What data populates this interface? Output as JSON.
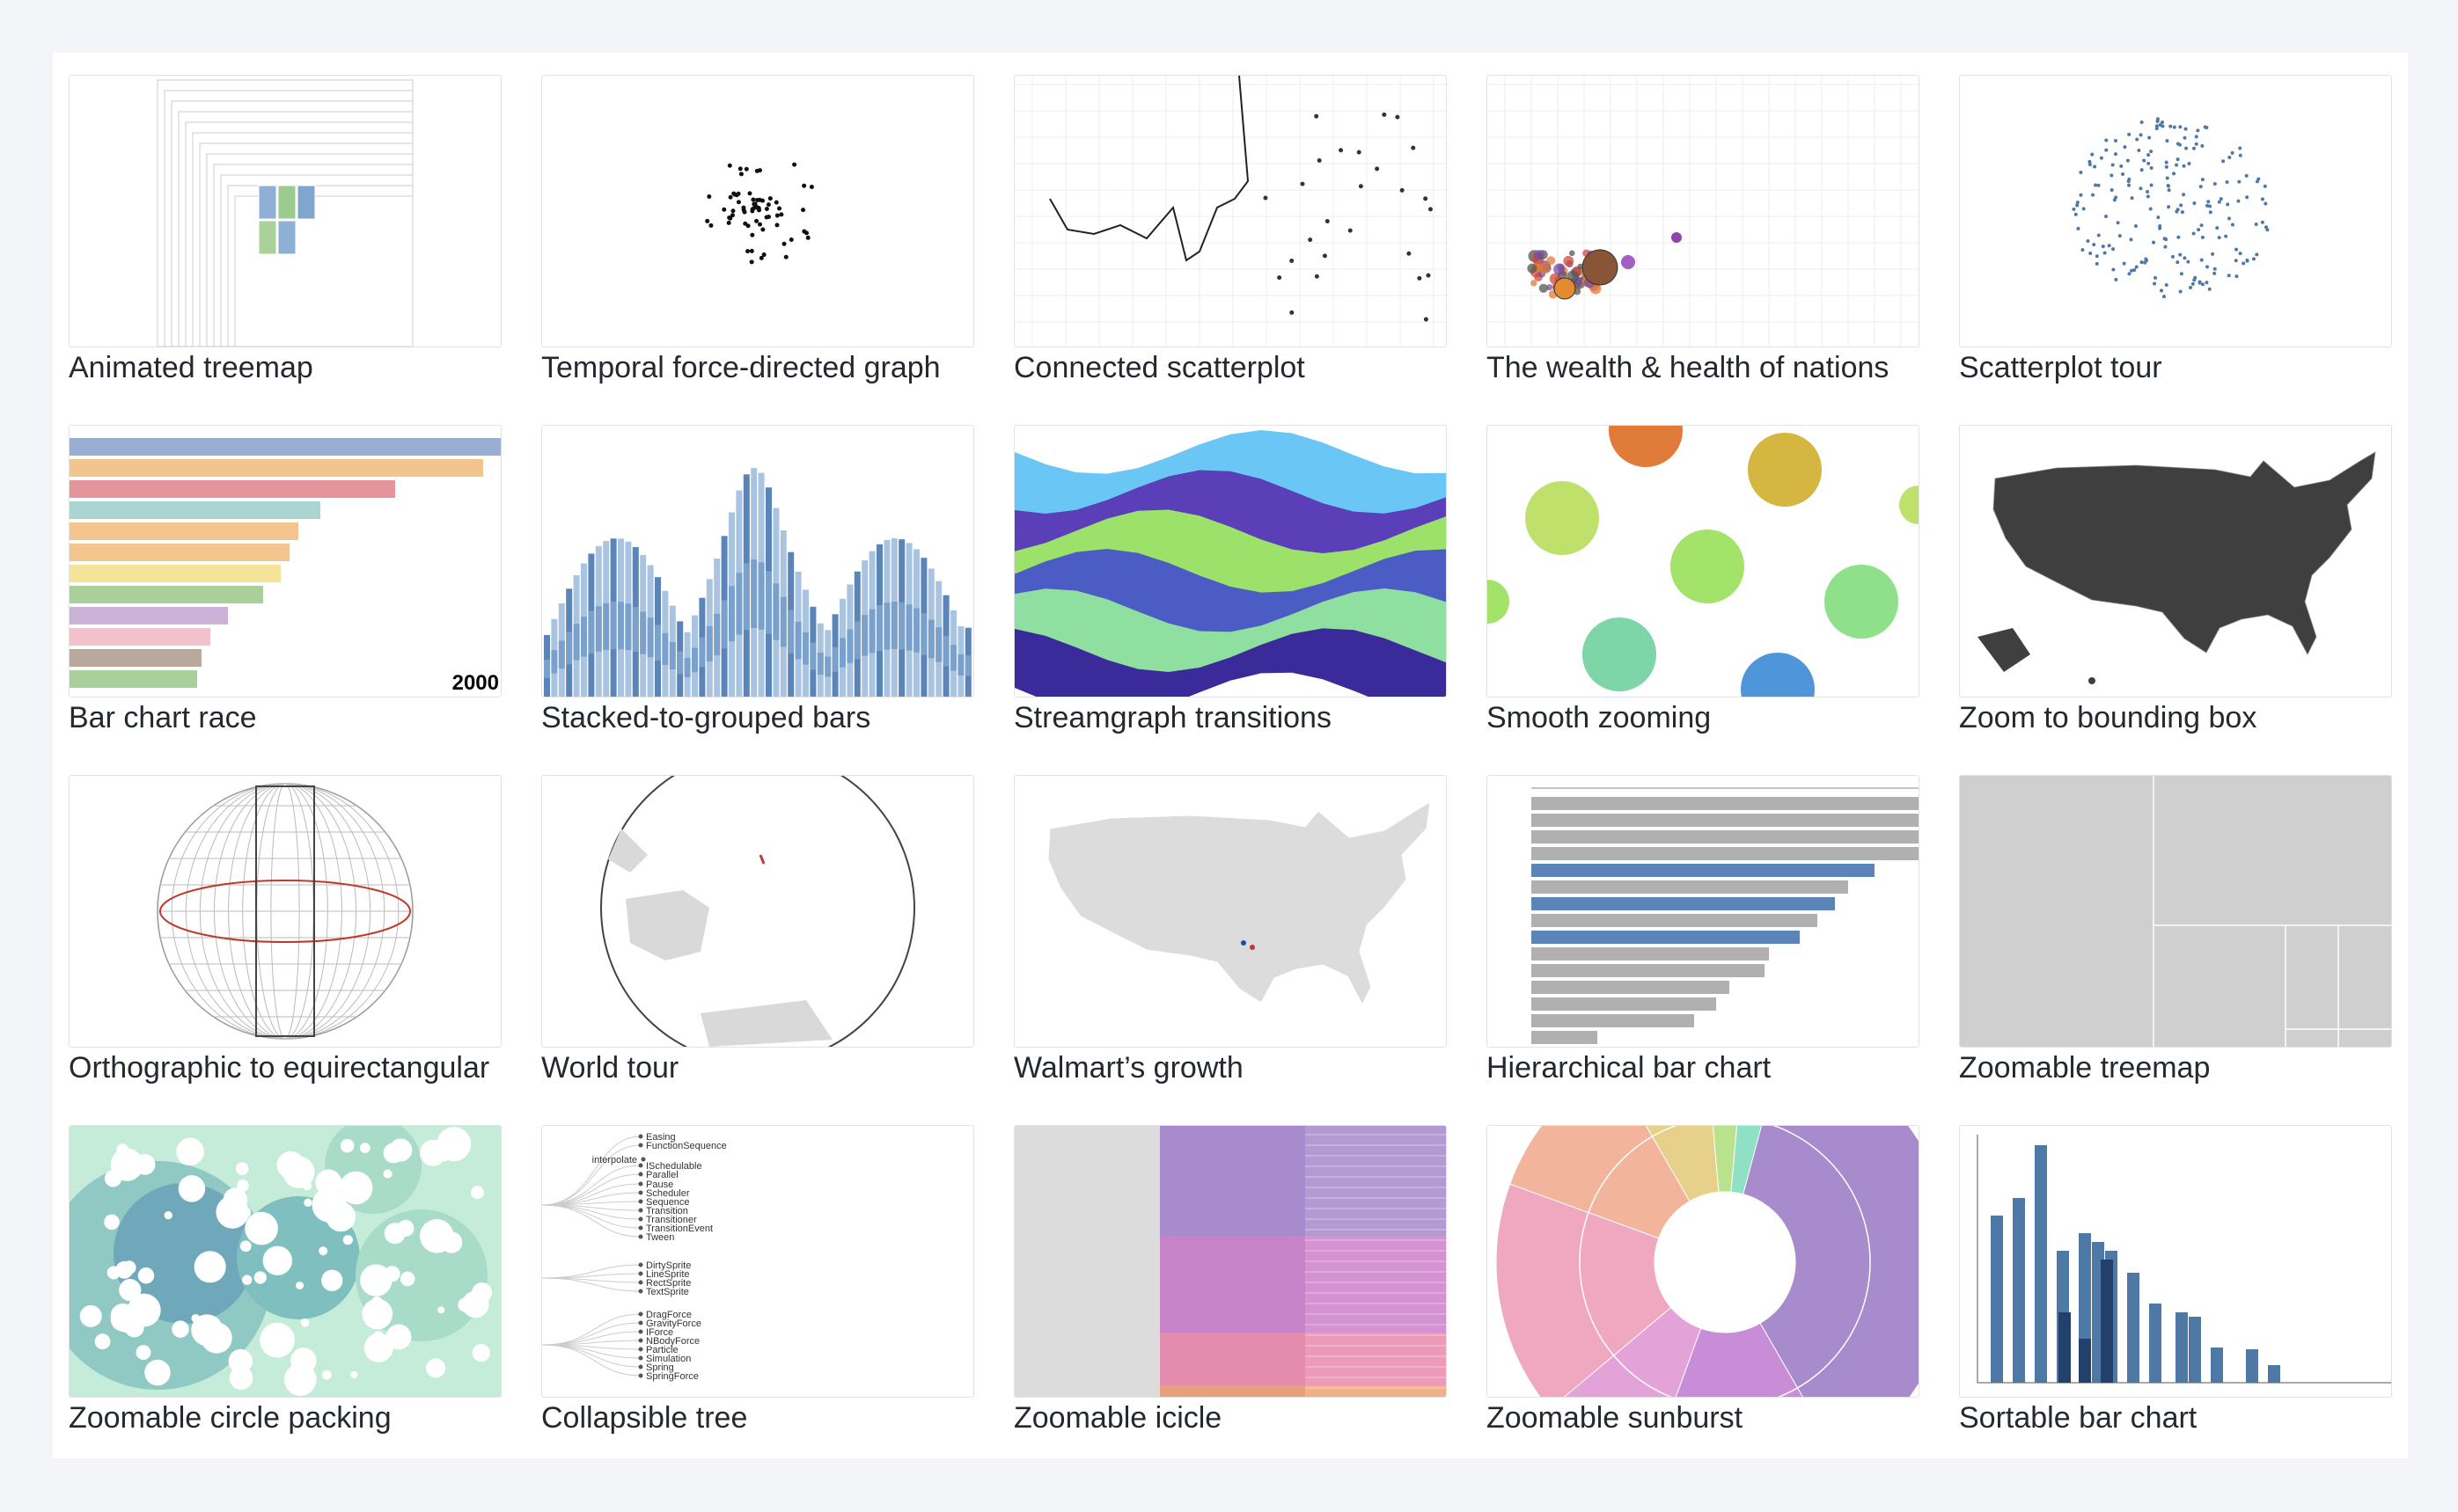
{
  "gallery": {
    "items": [
      {
        "title": "Animated treemap",
        "thumb": "treemap-animated"
      },
      {
        "title": "Temporal force-directed graph",
        "thumb": "force-graph"
      },
      {
        "title": "Connected scatterplot",
        "thumb": "connected-scatter"
      },
      {
        "title": "The wealth & health of nations",
        "thumb": "bubble-nations"
      },
      {
        "title": "Scatterplot tour",
        "thumb": "scatter-tour"
      },
      {
        "title": "Bar chart race",
        "thumb": "bar-race"
      },
      {
        "title": "Stacked-to-grouped bars",
        "thumb": "stacked-bars"
      },
      {
        "title": "Streamgraph transitions",
        "thumb": "streamgraph"
      },
      {
        "title": "Smooth zooming",
        "thumb": "circles-zoom"
      },
      {
        "title": "Zoom to bounding box",
        "thumb": "us-dark"
      },
      {
        "title": "Orthographic to equirectangular",
        "thumb": "globe-grid"
      },
      {
        "title": "World tour",
        "thumb": "world-globe"
      },
      {
        "title": "Walmart’s growth",
        "thumb": "us-light"
      },
      {
        "title": "Hierarchical bar chart",
        "thumb": "hbar"
      },
      {
        "title": "Zoomable treemap",
        "thumb": "treemap-gray"
      },
      {
        "title": "Zoomable circle packing",
        "thumb": "circle-pack"
      },
      {
        "title": "Collapsible tree",
        "thumb": "tree"
      },
      {
        "title": "Zoomable icicle",
        "thumb": "icicle"
      },
      {
        "title": "Zoomable sunburst",
        "thumb": "sunburst"
      },
      {
        "title": "Sortable bar chart",
        "thumb": "sortable-bars"
      }
    ],
    "thumb_text": {
      "bar_race_year": "2000",
      "tree_labels": [
        "Easing",
        "FunctionSequence",
        "interpolate",
        "ISchedulable",
        "Parallel",
        "Pause",
        "Scheduler",
        "Sequence",
        "Transition",
        "Transitioner",
        "TransitionEvent",
        "Tween",
        "DirtySprite",
        "LineSprite",
        "RectSprite",
        "TextSprite",
        "DragForce",
        "GravityForce",
        "IForce",
        "NBodyForce",
        "Particle",
        "Simulation",
        "Spring",
        "SpringForce"
      ]
    }
  },
  "colors": {
    "background": "#f3f5f8",
    "card_border": "#dfe3e8",
    "label_text": "#24292f",
    "d3_blue": "#4e79a7"
  }
}
